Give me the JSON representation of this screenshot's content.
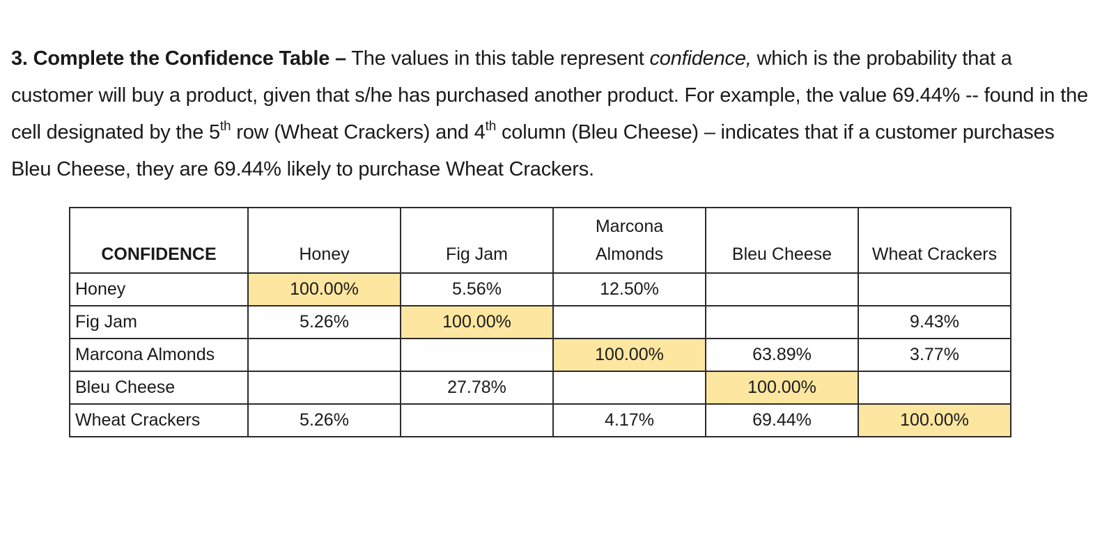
{
  "question": {
    "heading": "3. Complete the Confidence Table –",
    "text_1": " The values in this table represent ",
    "text_italic": "confidence,",
    "text_2": " which is the probability that a customer will buy a product, given that s/he has purchased another product. For example, the value 69.44% -- found in the cell designated by the 5",
    "sup_1": "th",
    "text_3": " row (Wheat Crackers) and 4",
    "sup_2": "th",
    "text_4": " column (Bleu Cheese) – indicates that if a customer purchases Bleu Cheese, they are 69.44% likely to purchase Wheat Crackers."
  },
  "table": {
    "corner": "CONFIDENCE",
    "columns": [
      {
        "line1": "",
        "line2": "Honey"
      },
      {
        "line1": "",
        "line2": "Fig Jam"
      },
      {
        "line1": "Marcona",
        "line2": "Almonds"
      },
      {
        "line1": "",
        "line2": "Bleu Cheese"
      },
      {
        "line1": "",
        "line2": "Wheat Crackers"
      }
    ],
    "rows": [
      {
        "label": "Honey",
        "cells": [
          "100.00%",
          "5.56%",
          "12.50%",
          "",
          ""
        ]
      },
      {
        "label": "Fig Jam",
        "cells": [
          "5.26%",
          "100.00%",
          "",
          "",
          "9.43%"
        ]
      },
      {
        "label": "Marcona Almonds",
        "cells": [
          "",
          "",
          "100.00%",
          "63.89%",
          "3.77%"
        ]
      },
      {
        "label": "Bleu Cheese",
        "cells": [
          "",
          "27.78%",
          "",
          "100.00%",
          ""
        ]
      },
      {
        "label": "Wheat Crackers",
        "cells": [
          "5.26%",
          "",
          "4.17%",
          "69.44%",
          "100.00%"
        ]
      }
    ]
  },
  "colors": {
    "diagonal_highlight": "#fde6a0",
    "border": "#2b2b2b"
  }
}
